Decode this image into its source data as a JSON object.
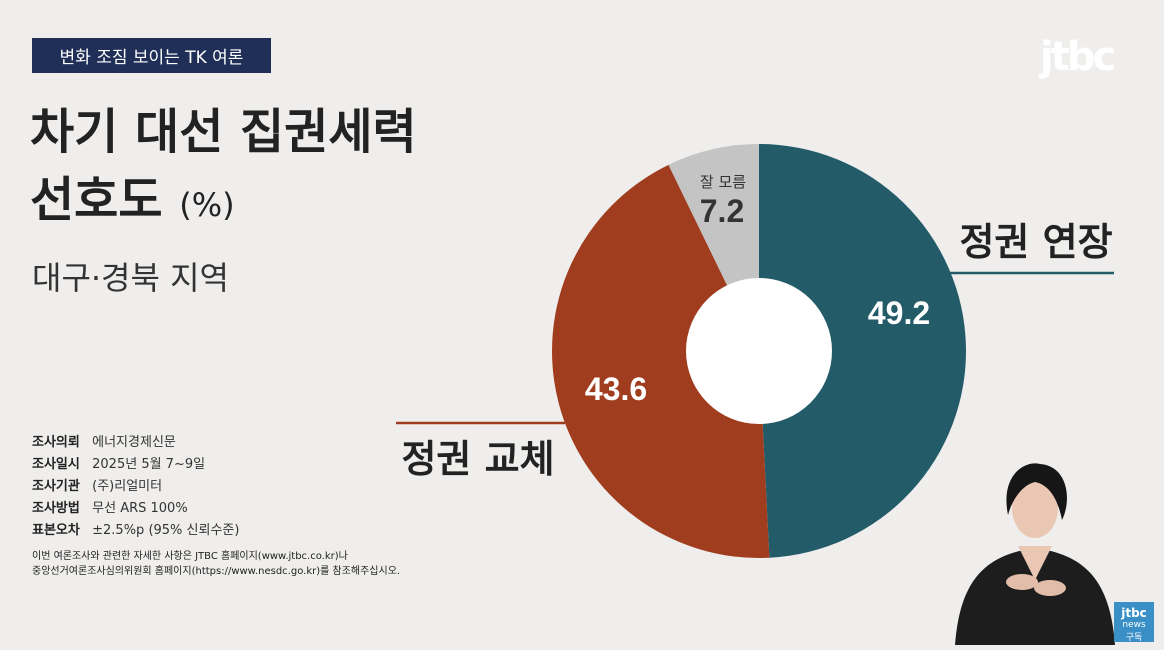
{
  "header": {
    "tag": "변화 조짐 보이는 TK 여론",
    "logo": "jtbc"
  },
  "title": {
    "line1": "차기 대선 집권세력",
    "line2": "선호도",
    "unit": "(%)"
  },
  "region": "대구·경북 지역",
  "survey": [
    {
      "key": "조사의뢰",
      "value": "에너지경제신문"
    },
    {
      "key": "조사일시",
      "value": "2025년 5월 7~9일"
    },
    {
      "key": "조사기관",
      "value": "(주)리얼미터"
    },
    {
      "key": "조사방법",
      "value": "무선 ARS 100%"
    },
    {
      "key": "표본오차",
      "value": "±2.5%p (95% 신뢰수준)"
    }
  ],
  "note": {
    "line1": "이번 여론조사와 관련한 자세한 사항은 JTBC 홈페이지(www.jtbc.co.kr)나",
    "line2": "중앙선거여론조사심의위원회 홈페이지(https://www.nesdc.go.kr)를 참조해주십시오."
  },
  "badge": {
    "line1": "jtbc",
    "line2": "news",
    "line3": "구독"
  },
  "chart_data": {
    "type": "pie",
    "donut": true,
    "unit": "%",
    "categories": [
      "정권 연장",
      "정권 교체",
      "잘 모름"
    ],
    "values": [
      49.2,
      43.6,
      7.2
    ],
    "colors": [
      "#245b69",
      "#a13d1f",
      "#c4c4c4"
    ]
  }
}
